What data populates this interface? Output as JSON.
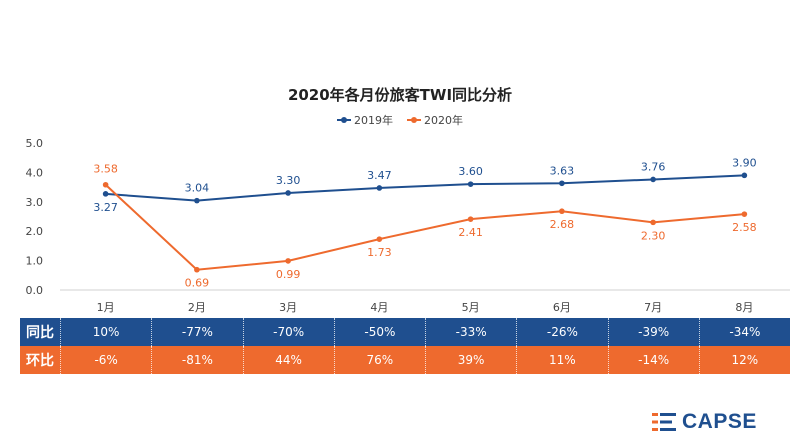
{
  "chart_data": {
    "type": "line",
    "title": "2020年各月份旅客TWI同比分析",
    "categories": [
      "1月",
      "2月",
      "3月",
      "4月",
      "5月",
      "6月",
      "7月",
      "8月"
    ],
    "series": [
      {
        "name": "2019年",
        "values": [
          3.27,
          3.04,
          3.3,
          3.47,
          3.6,
          3.63,
          3.76,
          3.9
        ],
        "color": "#1f4f8f"
      },
      {
        "name": "2020年",
        "values": [
          3.58,
          0.69,
          0.99,
          1.73,
          2.41,
          2.68,
          2.3,
          2.58
        ],
        "color": "#ee6a2e"
      }
    ],
    "data_labels": {
      "2019年": [
        "3.27",
        "3.04",
        "3.30",
        "3.47",
        "3.60",
        "3.63",
        "3.76",
        "3.90"
      ],
      "2020年": [
        "3.58",
        "0.69",
        "0.99",
        "1.73",
        "2.41",
        "2.68",
        "2.30",
        "2.58"
      ]
    },
    "ylim": [
      0,
      5
    ],
    "yticks": [
      "0.0",
      "1.0",
      "2.0",
      "3.0",
      "4.0",
      "5.0"
    ],
    "grid": false,
    "legend": "top-center"
  },
  "table": {
    "rows": [
      {
        "label": "同比",
        "values": [
          "10%",
          "-77%",
          "-70%",
          "-50%",
          "-33%",
          "-26%",
          "-39%",
          "-34%"
        ],
        "color": "#1f4f8f"
      },
      {
        "label": "环比",
        "values": [
          "-6%",
          "-81%",
          "44%",
          "76%",
          "39%",
          "11%",
          "-14%",
          "12%"
        ],
        "color": "#ee6a2e"
      }
    ]
  },
  "logo": {
    "text": "CAPSE"
  }
}
